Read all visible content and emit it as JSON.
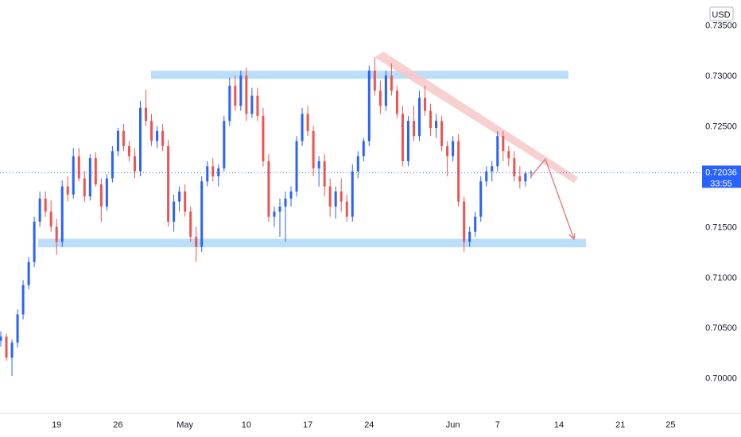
{
  "chart_data": {
    "type": "candlestick",
    "currency": "USD",
    "colors": {
      "up": "#2962ff",
      "down": "#ef5350",
      "zone_blue": "#bbdefb",
      "zone_red": "#f8c8c8",
      "arrow": "#e57373",
      "price_line": "#2962ff",
      "price_label_bg": "#2962ff"
    },
    "y_axis": {
      "min": 0.6965,
      "max": 0.7375,
      "tick_labels": [
        "0.73500",
        "0.73000",
        "0.72500",
        "0.72000",
        "0.71500",
        "0.71000",
        "0.70500",
        "0.70000"
      ],
      "tick_values": [
        0.735,
        0.73,
        0.725,
        0.72,
        0.715,
        0.71,
        0.705,
        0.7
      ]
    },
    "x_axis": {
      "tick_labels": [
        "19",
        "26",
        "May",
        "10",
        "17",
        "24",
        "Jun",
        "7",
        "14",
        "21",
        "25"
      ],
      "tick_index": [
        10,
        21,
        33,
        44,
        55,
        66,
        81,
        89,
        100,
        111,
        120
      ]
    },
    "current_price": {
      "value": 0.72036,
      "label": "0.72036",
      "countdown": "33:55"
    },
    "candles": [
      [
        0.7037,
        0.7046,
        0.7031,
        0.7041
      ],
      [
        0.7041,
        0.7044,
        0.7017,
        0.702
      ],
      [
        0.702,
        0.7038,
        0.7002,
        0.7035
      ],
      [
        0.7035,
        0.7068,
        0.703,
        0.7063
      ],
      [
        0.7063,
        0.7097,
        0.7058,
        0.7092
      ],
      [
        0.7092,
        0.712,
        0.7088,
        0.7115
      ],
      [
        0.7115,
        0.716,
        0.711,
        0.7155
      ],
      [
        0.7155,
        0.7185,
        0.715,
        0.7178
      ],
      [
        0.7178,
        0.7185,
        0.716,
        0.7165
      ],
      [
        0.7165,
        0.7176,
        0.7145,
        0.715
      ],
      [
        0.715,
        0.7158,
        0.7122,
        0.7135
      ],
      [
        0.7135,
        0.7196,
        0.713,
        0.719
      ],
      [
        0.719,
        0.72,
        0.7175,
        0.7182
      ],
      [
        0.7182,
        0.7228,
        0.7178,
        0.722
      ],
      [
        0.722,
        0.7228,
        0.7195,
        0.7198
      ],
      [
        0.7198,
        0.7205,
        0.7175,
        0.718
      ],
      [
        0.718,
        0.7222,
        0.7176,
        0.7218
      ],
      [
        0.7218,
        0.7224,
        0.719,
        0.7192
      ],
      [
        0.7192,
        0.7198,
        0.7155,
        0.717
      ],
      [
        0.717,
        0.7202,
        0.7166,
        0.7198
      ],
      [
        0.7198,
        0.723,
        0.7194,
        0.7225
      ],
      [
        0.7225,
        0.7248,
        0.722,
        0.7245
      ],
      [
        0.7245,
        0.7252,
        0.7225,
        0.723
      ],
      [
        0.723,
        0.7235,
        0.7215,
        0.722
      ],
      [
        0.722,
        0.7228,
        0.7198,
        0.7205
      ],
      [
        0.7205,
        0.7275,
        0.72,
        0.7268
      ],
      [
        0.7268,
        0.7286,
        0.725,
        0.7255
      ],
      [
        0.7255,
        0.7262,
        0.723,
        0.7235
      ],
      [
        0.7235,
        0.725,
        0.7228,
        0.7245
      ],
      [
        0.7245,
        0.7252,
        0.7225,
        0.723
      ],
      [
        0.723,
        0.7236,
        0.715,
        0.7155
      ],
      [
        0.7155,
        0.7182,
        0.7145,
        0.7175
      ],
      [
        0.7175,
        0.719,
        0.7165,
        0.7185
      ],
      [
        0.7185,
        0.7192,
        0.716,
        0.7165
      ],
      [
        0.7165,
        0.717,
        0.7135,
        0.714
      ],
      [
        0.714,
        0.715,
        0.7115,
        0.713
      ],
      [
        0.713,
        0.72,
        0.7125,
        0.7195
      ],
      [
        0.7195,
        0.7215,
        0.719,
        0.721
      ],
      [
        0.721,
        0.7218,
        0.7195,
        0.72
      ],
      [
        0.72,
        0.7212,
        0.719,
        0.7208
      ],
      [
        0.7208,
        0.726,
        0.7205,
        0.7255
      ],
      [
        0.7255,
        0.7298,
        0.725,
        0.729
      ],
      [
        0.729,
        0.73,
        0.7265,
        0.727
      ],
      [
        0.727,
        0.7305,
        0.7265,
        0.73
      ],
      [
        0.73,
        0.7308,
        0.7255,
        0.7262
      ],
      [
        0.7262,
        0.7288,
        0.7258,
        0.728
      ],
      [
        0.728,
        0.7288,
        0.7255,
        0.726
      ],
      [
        0.726,
        0.7268,
        0.721,
        0.7215
      ],
      [
        0.7215,
        0.7222,
        0.7155,
        0.716
      ],
      [
        0.716,
        0.717,
        0.715,
        0.7165
      ],
      [
        0.7165,
        0.7178,
        0.714,
        0.717
      ],
      [
        0.717,
        0.7185,
        0.7135,
        0.7178
      ],
      [
        0.7178,
        0.719,
        0.717,
        0.7185
      ],
      [
        0.7185,
        0.724,
        0.718,
        0.7235
      ],
      [
        0.7235,
        0.7268,
        0.723,
        0.7262
      ],
      [
        0.7262,
        0.727,
        0.724,
        0.7245
      ],
      [
        0.7245,
        0.725,
        0.72,
        0.7208
      ],
      [
        0.7208,
        0.722,
        0.719,
        0.7215
      ],
      [
        0.7215,
        0.7222,
        0.718,
        0.719
      ],
      [
        0.719,
        0.7198,
        0.716,
        0.717
      ],
      [
        0.717,
        0.719,
        0.7158,
        0.7185
      ],
      [
        0.7185,
        0.7198,
        0.7165,
        0.7175
      ],
      [
        0.7175,
        0.7182,
        0.7155,
        0.716
      ],
      [
        0.716,
        0.7212,
        0.7155,
        0.7205
      ],
      [
        0.7205,
        0.7225,
        0.7198,
        0.722
      ],
      [
        0.722,
        0.7238,
        0.7215,
        0.7235
      ],
      [
        0.7235,
        0.731,
        0.723,
        0.7305
      ],
      [
        0.7305,
        0.7318,
        0.728,
        0.7285
      ],
      [
        0.7285,
        0.7295,
        0.7262,
        0.727
      ],
      [
        0.727,
        0.7305,
        0.7265,
        0.73
      ],
      [
        0.73,
        0.7312,
        0.728,
        0.7285
      ],
      [
        0.7285,
        0.729,
        0.7258,
        0.7262
      ],
      [
        0.7262,
        0.727,
        0.721,
        0.7215
      ],
      [
        0.7215,
        0.726,
        0.721,
        0.7255
      ],
      [
        0.7255,
        0.727,
        0.7235,
        0.724
      ],
      [
        0.724,
        0.7285,
        0.7235,
        0.7278
      ],
      [
        0.7278,
        0.729,
        0.726,
        0.7265
      ],
      [
        0.7265,
        0.7272,
        0.724,
        0.7248
      ],
      [
        0.7248,
        0.7262,
        0.7238,
        0.7255
      ],
      [
        0.7255,
        0.726,
        0.7225,
        0.723
      ],
      [
        0.723,
        0.7235,
        0.72,
        0.722
      ],
      [
        0.722,
        0.724,
        0.7215,
        0.7235
      ],
      [
        0.7235,
        0.7242,
        0.717,
        0.7175
      ],
      [
        0.7175,
        0.718,
        0.7125,
        0.7135
      ],
      [
        0.7135,
        0.715,
        0.713,
        0.7145
      ],
      [
        0.7145,
        0.7165,
        0.714,
        0.716
      ],
      [
        0.716,
        0.72,
        0.7155,
        0.7195
      ],
      [
        0.7195,
        0.721,
        0.719,
        0.7205
      ],
      [
        0.7205,
        0.7215,
        0.7195,
        0.721
      ],
      [
        0.721,
        0.7245,
        0.7205,
        0.724
      ],
      [
        0.724,
        0.7245,
        0.7215,
        0.7225
      ],
      [
        0.7225,
        0.723,
        0.721,
        0.7218
      ],
      [
        0.7218,
        0.7225,
        0.7195,
        0.72
      ],
      [
        0.72,
        0.721,
        0.7188,
        0.7195
      ],
      [
        0.7195,
        0.7205,
        0.719,
        0.7203
      ],
      [
        0.7203,
        0.7206,
        0.7198,
        0.7204
      ]
    ]
  }
}
